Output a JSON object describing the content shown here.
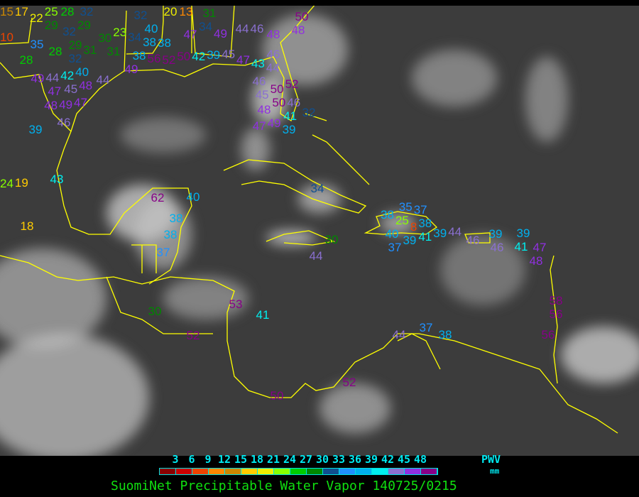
{
  "title": "SuomiNet Precipitable Water Vapor 140725/0215",
  "legend": {
    "unit_label": "PWV",
    "unit": "mm",
    "ticks": [
      "3",
      "6",
      "9",
      "12",
      "15",
      "18",
      "21",
      "24",
      "27",
      "30",
      "33",
      "36",
      "39",
      "42",
      "45",
      "48"
    ],
    "colors": [
      "#8b0000",
      "#cc0000",
      "#ee4400",
      "#ff8800",
      "#cc8800",
      "#ffcc00",
      "#eeee00",
      "#88ff00",
      "#00cc00",
      "#008800",
      "#105090",
      "#2090ff",
      "#00b0ee",
      "#00eeee",
      "#8a70d0",
      "#9030e0",
      "#880088"
    ]
  },
  "coastline_color": "#ffff00",
  "stations": [
    "15",
    "17",
    "22",
    "29",
    "25",
    "28",
    "32",
    "29",
    "10",
    "35",
    "28",
    "28",
    "32",
    "29",
    "31",
    "31",
    "32",
    "40",
    "30",
    "34",
    "23",
    "40",
    "32",
    "38",
    "38",
    "38",
    "49",
    "56",
    "52",
    "20",
    "13",
    "34",
    "31",
    "47",
    "49",
    "44",
    "46",
    "48",
    "50",
    "48",
    "50",
    "42",
    "39",
    "45",
    "47",
    "43",
    "46",
    "44",
    "46",
    "52",
    "45",
    "50",
    "50",
    "46",
    "32",
    "48",
    "47",
    "49",
    "41",
    "39",
    "49",
    "44",
    "42",
    "47",
    "45",
    "48",
    "44",
    "48",
    "49",
    "47",
    "46",
    "39",
    "24",
    "19",
    "43",
    "18",
    "62",
    "40",
    "38",
    "38",
    "37",
    "30",
    "53",
    "41",
    "52",
    "34",
    "38",
    "35",
    "37",
    "25",
    "38",
    "8",
    "40",
    "39",
    "37",
    "41",
    "39",
    "44",
    "30",
    "44",
    "46",
    "46",
    "39",
    "39",
    "41",
    "47",
    "48",
    "58",
    "56",
    "56",
    "44",
    "37",
    "38",
    "52",
    "50"
  ]
}
